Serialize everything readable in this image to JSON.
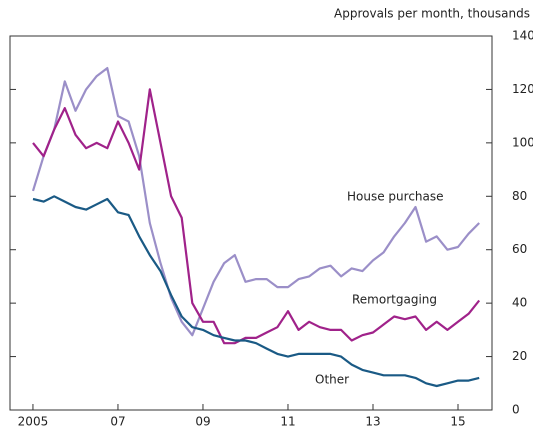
{
  "chart_data": {
    "type": "line",
    "y_label": "Approvals per month, thousands",
    "x": [
      2005,
      2005.25,
      2005.5,
      2005.75,
      2006,
      2006.25,
      2006.5,
      2006.75,
      2007,
      2007.25,
      2007.5,
      2007.75,
      2008,
      2008.25,
      2008.5,
      2008.75,
      2009,
      2009.25,
      2009.5,
      2009.75,
      2010,
      2010.25,
      2010.5,
      2010.75,
      2011,
      2011.25,
      2011.5,
      2011.75,
      2012,
      2012.25,
      2012.5,
      2012.75,
      2013,
      2013.25,
      2013.5,
      2013.75,
      2014,
      2014.25,
      2014.5,
      2014.75,
      2015,
      2015.25,
      2015.5
    ],
    "series": [
      {
        "name": "House purchase",
        "color": "#9b8fc8",
        "values": [
          82,
          95,
          105,
          123,
          112,
          120,
          125,
          128,
          110,
          108,
          95,
          70,
          55,
          42,
          33,
          28,
          38,
          48,
          55,
          58,
          48,
          49,
          49,
          46,
          46,
          49,
          50,
          53,
          54,
          50,
          53,
          52,
          56,
          59,
          65,
          70,
          76,
          63,
          65,
          60,
          61,
          66,
          70
        ]
      },
      {
        "name": "Remortgaging",
        "color": "#a0228a",
        "values": [
          100,
          95,
          105,
          113,
          103,
          98,
          100,
          98,
          108,
          100,
          90,
          120,
          100,
          80,
          72,
          40,
          33,
          33,
          25,
          25,
          27,
          27,
          29,
          31,
          37,
          30,
          33,
          31,
          30,
          30,
          26,
          28,
          29,
          32,
          35,
          34,
          35,
          30,
          33,
          30,
          33,
          36,
          41
        ]
      },
      {
        "name": "Other",
        "color": "#1a5a85",
        "values": [
          79,
          78,
          80,
          78,
          76,
          75,
          77,
          79,
          74,
          73,
          65,
          58,
          52,
          43,
          35,
          31,
          30,
          28,
          27,
          26,
          26,
          25,
          23,
          21,
          20,
          21,
          21,
          21,
          21,
          20,
          17,
          15,
          14,
          13,
          13,
          13,
          12,
          10,
          9,
          10,
          11,
          11,
          12
        ]
      }
    ],
    "xlim": [
      2004.46,
      2015.8
    ],
    "xticks": [
      {
        "value": 2005,
        "label": "2005"
      },
      {
        "value": 2007,
        "label": "07"
      },
      {
        "value": 2009,
        "label": "09"
      },
      {
        "value": 2011,
        "label": "11"
      },
      {
        "value": 2013,
        "label": "13"
      },
      {
        "value": 2015,
        "label": "15"
      }
    ],
    "ylim": [
      0,
      140
    ],
    "yticks": [
      0,
      20,
      40,
      60,
      80,
      100,
      120,
      140
    ]
  }
}
